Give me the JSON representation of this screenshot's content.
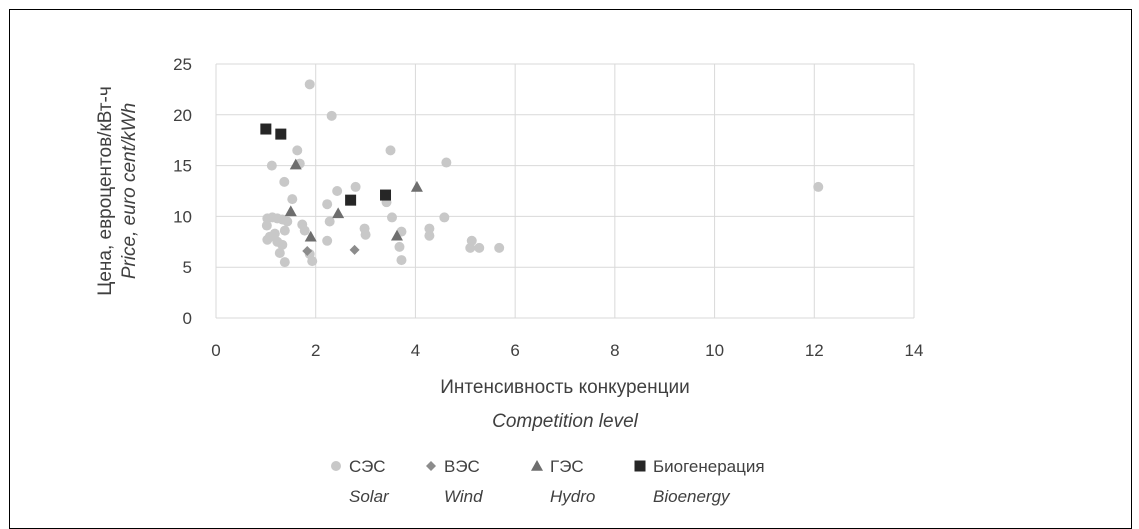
{
  "chart_data": {
    "type": "scatter",
    "xlabel": "Интенсивность конкуренции",
    "xlabel_en": "Competition level",
    "ylabel": "Цена, евроцентов/кВт-ч",
    "ylabel_en": "Price, euro cent/kWh",
    "xlim": [
      0,
      14
    ],
    "ylim": [
      0,
      25
    ],
    "x_ticks": [
      "0",
      "2",
      "4",
      "6",
      "8",
      "10",
      "12",
      "14"
    ],
    "y_ticks": [
      "0",
      "5",
      "10",
      "15",
      "20",
      "25"
    ],
    "grid": true,
    "legend_position": "bottom",
    "series": [
      {
        "name": "СЭС",
        "name_en": "Solar",
        "marker": "circle",
        "color": "#c8c8c8",
        "points": [
          [
            1.88,
            23.0
          ],
          [
            2.32,
            19.9
          ],
          [
            3.5,
            16.5
          ],
          [
            4.62,
            15.3
          ],
          [
            1.12,
            15.0
          ],
          [
            1.63,
            16.5
          ],
          [
            1.68,
            15.2
          ],
          [
            1.37,
            13.4
          ],
          [
            2.8,
            12.9
          ],
          [
            2.43,
            12.5
          ],
          [
            3.42,
            11.4
          ],
          [
            1.53,
            11.7
          ],
          [
            2.23,
            11.2
          ],
          [
            1.02,
            9.1
          ],
          [
            1.03,
            9.8
          ],
          [
            1.13,
            9.9
          ],
          [
            1.23,
            9.8
          ],
          [
            1.33,
            9.7
          ],
          [
            1.43,
            9.5
          ],
          [
            2.28,
            9.5
          ],
          [
            3.53,
            9.9
          ],
          [
            4.58,
            9.9
          ],
          [
            1.73,
            9.2
          ],
          [
            1.78,
            8.6
          ],
          [
            1.18,
            8.3
          ],
          [
            1.08,
            8.0
          ],
          [
            1.38,
            8.6
          ],
          [
            2.98,
            8.8
          ],
          [
            3.0,
            8.2
          ],
          [
            3.72,
            8.5
          ],
          [
            4.28,
            8.8
          ],
          [
            4.28,
            8.1
          ],
          [
            1.03,
            7.7
          ],
          [
            1.23,
            7.5
          ],
          [
            1.33,
            7.2
          ],
          [
            2.23,
            7.6
          ],
          [
            3.68,
            7.0
          ],
          [
            5.13,
            7.6
          ],
          [
            5.1,
            6.9
          ],
          [
            5.28,
            6.9
          ],
          [
            5.68,
            6.9
          ],
          [
            1.28,
            6.4
          ],
          [
            1.88,
            6.3
          ],
          [
            1.38,
            5.5
          ],
          [
            1.93,
            5.6
          ],
          [
            3.72,
            5.7
          ],
          [
            12.08,
            12.9
          ]
        ]
      },
      {
        "name": "ВЭС",
        "name_en": "Wind",
        "marker": "diamond",
        "color": "#8c8c8c",
        "points": [
          [
            1.83,
            6.6
          ],
          [
            2.78,
            6.7
          ]
        ]
      },
      {
        "name": "ГЭС",
        "name_en": "Hydro",
        "marker": "triangle",
        "color": "#6e6e6e",
        "points": [
          [
            1.6,
            15.1
          ],
          [
            1.5,
            10.5
          ],
          [
            2.45,
            10.3
          ],
          [
            4.03,
            12.9
          ],
          [
            1.9,
            8.0
          ],
          [
            3.63,
            8.1
          ]
        ]
      },
      {
        "name": "Биогенерация",
        "name_en": "Bioenergy",
        "marker": "square",
        "color": "#262626",
        "points": [
          [
            1.0,
            18.6
          ],
          [
            1.3,
            18.1
          ],
          [
            2.7,
            11.6
          ],
          [
            3.4,
            12.1
          ]
        ]
      }
    ]
  }
}
